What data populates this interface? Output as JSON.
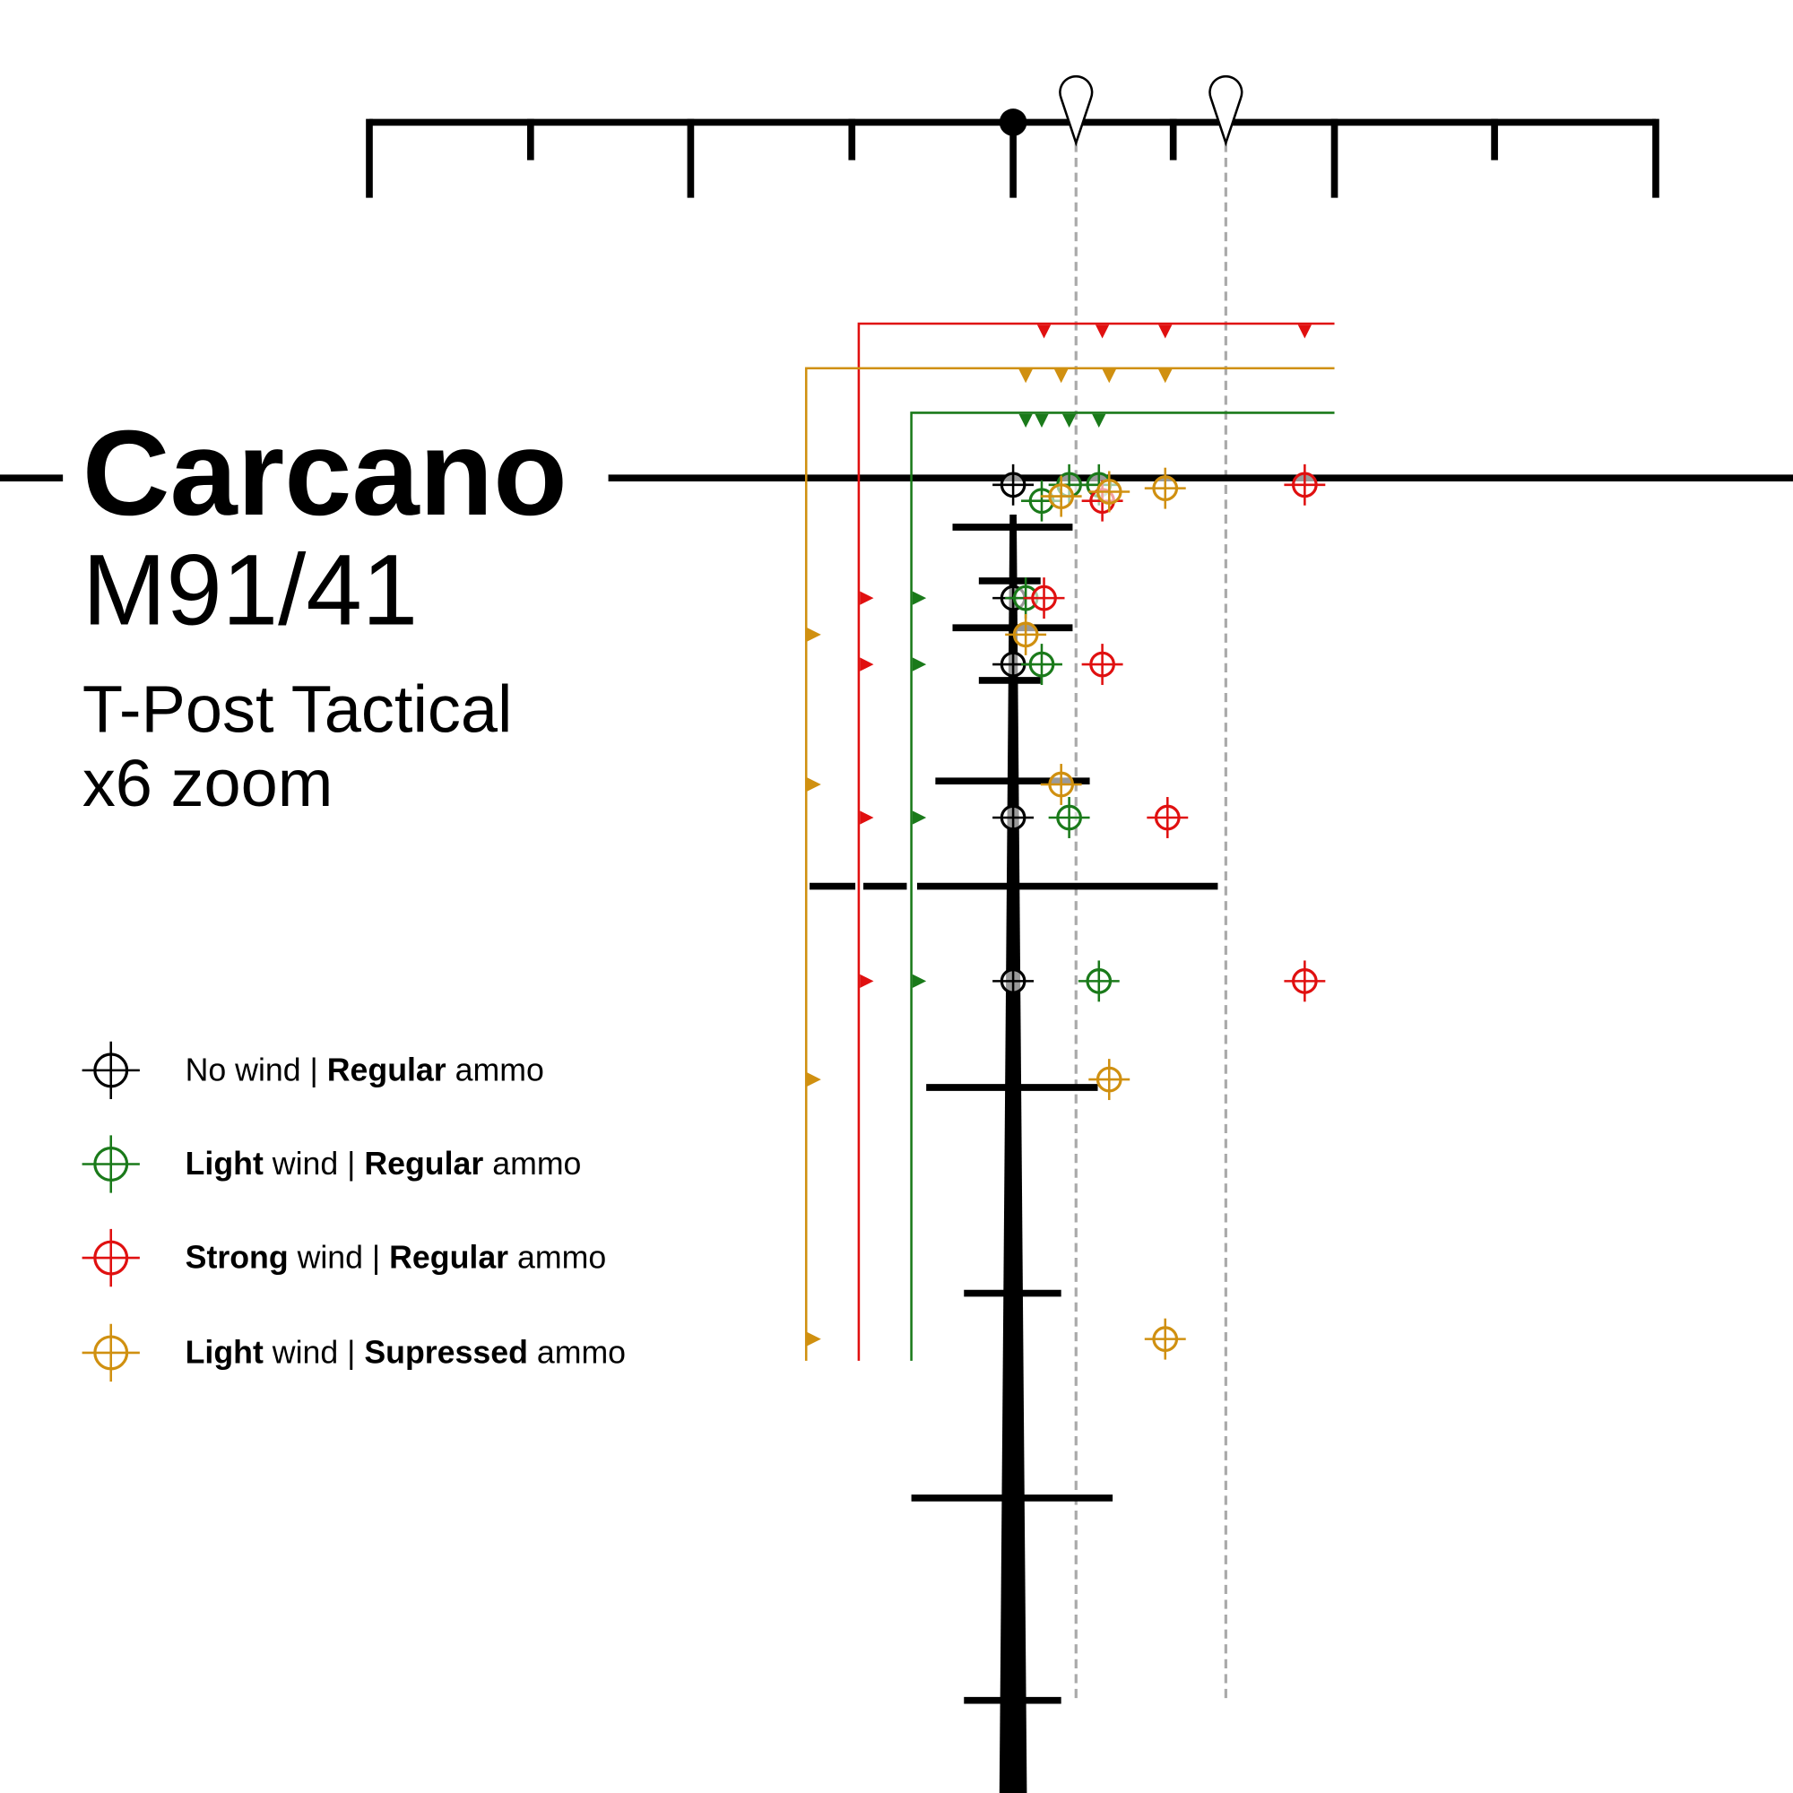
{
  "title": "Carcano",
  "model": "M91/41",
  "reticle": "T-Post Tactical",
  "zoom": "x6 zoom",
  "legend": [
    {
      "color": "#000000",
      "parts": [
        {
          "text": "No wind",
          "bold": false
        },
        {
          "text": " | ",
          "bold": false
        },
        {
          "text": "Regular",
          "bold": true
        },
        {
          "text": " ammo",
          "bold": false
        }
      ]
    },
    {
      "color": "#1a7a1a",
      "parts": [
        {
          "text": "Light",
          "bold": true
        },
        {
          "text": " wind",
          "bold": false
        },
        {
          "text": " | ",
          "bold": false
        },
        {
          "text": "Regular",
          "bold": true
        },
        {
          "text": " ammo",
          "bold": false
        }
      ]
    },
    {
      "color": "#e01010",
      "parts": [
        {
          "text": "Strong",
          "bold": true
        },
        {
          "text": " wind",
          "bold": false
        },
        {
          "text": " | ",
          "bold": false
        },
        {
          "text": "Regular",
          "bold": true
        },
        {
          "text": " ammo",
          "bold": false
        }
      ]
    },
    {
      "color": "#d09010",
      "parts": [
        {
          "text": "Light",
          "bold": true
        },
        {
          "text": " wind",
          "bold": false
        },
        {
          "text": " | ",
          "bold": false
        },
        {
          "text": "Supressed",
          "bold": true
        },
        {
          "text": " ammo",
          "bold": false
        }
      ]
    }
  ]
}
